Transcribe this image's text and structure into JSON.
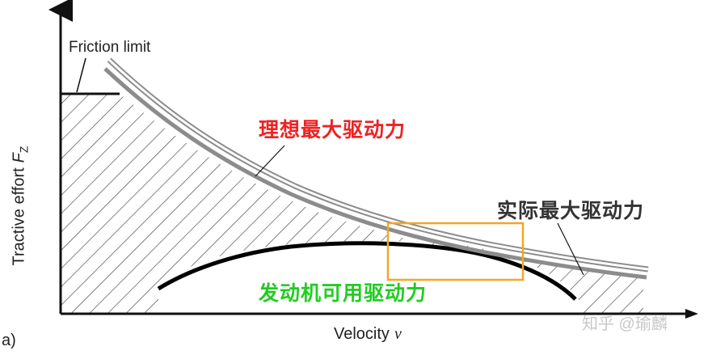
{
  "labels": {
    "friction_limit": "Friction limit",
    "y_axis": "Tractive effort",
    "y_var": "F",
    "y_sub": "Z",
    "x_axis": "Velocity",
    "x_var": "v",
    "panel": "a)",
    "ideal_curve": "理想最大驱动力",
    "actual_curve": "实际最大驱动力",
    "engine_curve": "发动机可用驱动力",
    "watermark": "知乎 @瑜麟"
  },
  "colors": {
    "ideal_label": "#ee2222",
    "actual_label": "#333333",
    "engine_label": "#22cc22",
    "highlight_box": "#f5a623",
    "gray_curve": "#8c8c8c"
  }
}
